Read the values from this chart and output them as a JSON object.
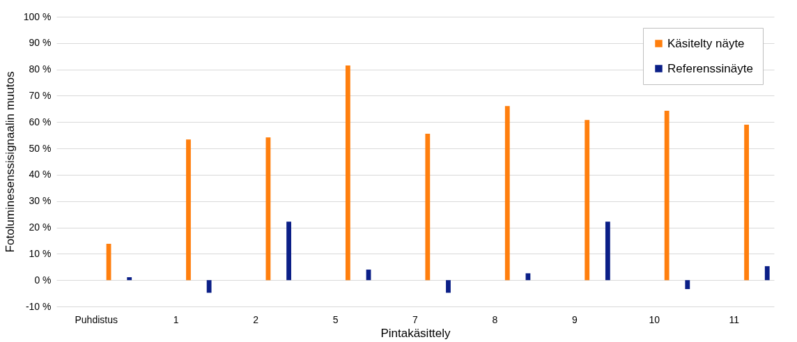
{
  "chart_data": {
    "type": "bar",
    "xlabel": "Pintakäsittely",
    "ylabel": "Fotoluminesenssisignaalin muutos",
    "categories": [
      "Puhdistus",
      "1",
      "2",
      "5",
      "7",
      "8",
      "9",
      "10",
      "11"
    ],
    "series": [
      {
        "name": "Käsitelty näyte",
        "color": "#ff7f0e",
        "values": [
          13.8,
          53.4,
          54.2,
          81.5,
          55.6,
          66.1,
          60.8,
          64.3,
          59.0
        ]
      },
      {
        "name": "Referenssinäyte",
        "color": "#0b1f87",
        "values": [
          1.1,
          -4.8,
          22.2,
          4.0,
          -4.8,
          2.6,
          22.2,
          -3.4,
          5.3
        ]
      }
    ],
    "ylim": [
      -10,
      100
    ],
    "yticks": [
      {
        "value": -10,
        "label": "-10 %"
      },
      {
        "value": 0,
        "label": "0 %"
      },
      {
        "value": 10,
        "label": "10 %"
      },
      {
        "value": 20,
        "label": "20 %"
      },
      {
        "value": 30,
        "label": "30 %"
      },
      {
        "value": 40,
        "label": "40 %"
      },
      {
        "value": 50,
        "label": "50 %"
      },
      {
        "value": 60,
        "label": "60 %"
      },
      {
        "value": 70,
        "label": "70 %"
      },
      {
        "value": 80,
        "label": "80 %"
      },
      {
        "value": 90,
        "label": "90 %"
      },
      {
        "value": 100,
        "label": "100 %"
      }
    ],
    "grid": "y",
    "legend": "top right"
  }
}
